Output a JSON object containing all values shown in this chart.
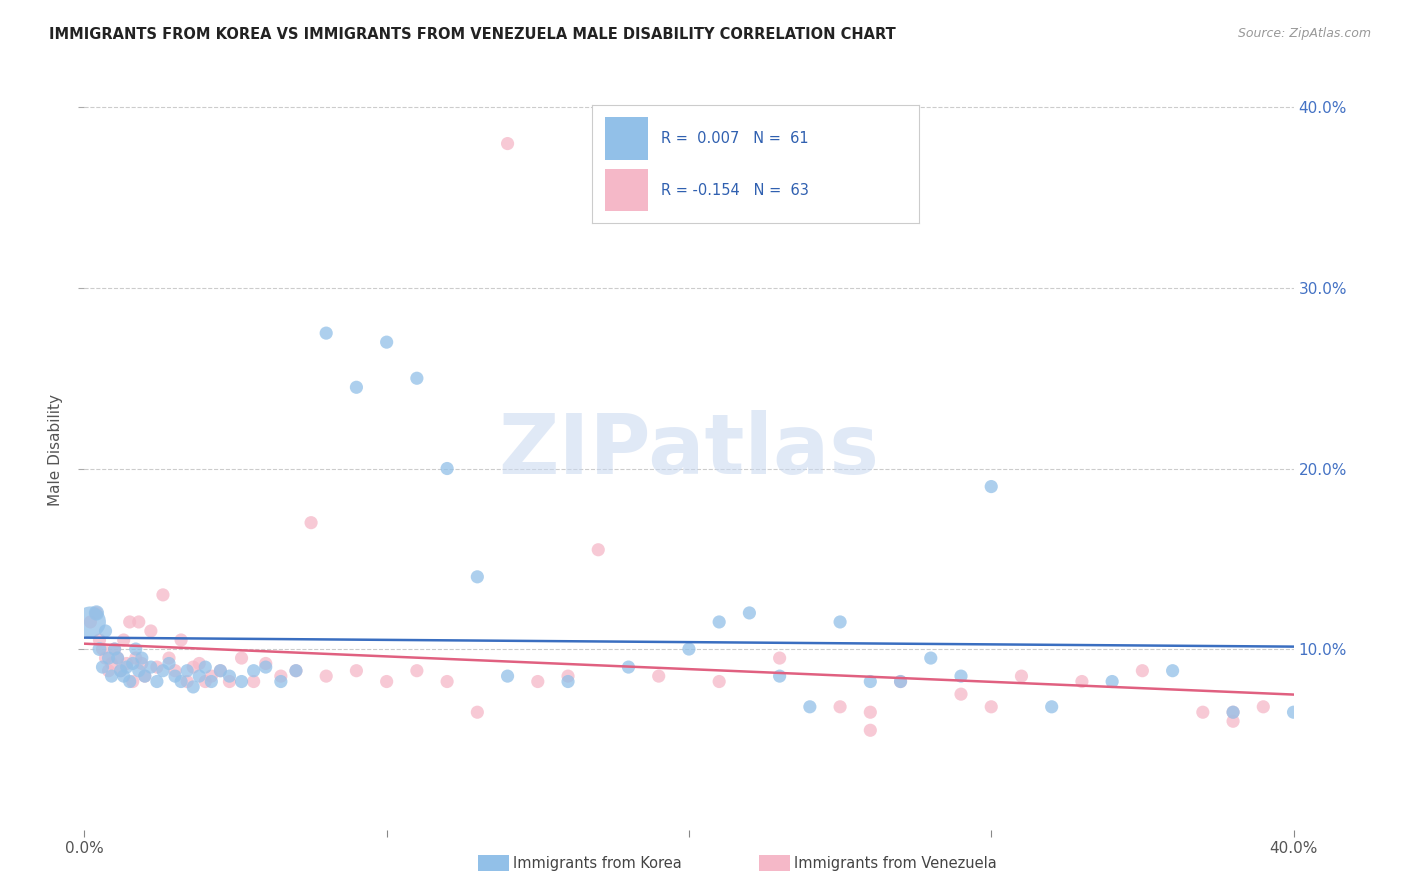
{
  "title": "IMMIGRANTS FROM KOREA VS IMMIGRANTS FROM VENEZUELA MALE DISABILITY CORRELATION CHART",
  "source": "Source: ZipAtlas.com",
  "ylabel": "Male Disability",
  "x_min": 0.0,
  "x_max": 0.4,
  "y_min": 0.0,
  "y_max": 0.42,
  "x_ticks": [
    0.0,
    0.1,
    0.2,
    0.3,
    0.4
  ],
  "x_tick_labels": [
    "0.0%",
    "",
    "",
    "",
    "40.0%"
  ],
  "y_ticks": [
    0.1,
    0.2,
    0.3,
    0.4
  ],
  "y_tick_labels_right": [
    "10.0%",
    "20.0%",
    "30.0%",
    "40.0%"
  ],
  "korea_color": "#92C0E8",
  "venezuela_color": "#F5B8C8",
  "korea_R": 0.007,
  "korea_N": 61,
  "venezuela_R": -0.154,
  "venezuela_N": 63,
  "trend_korea_color": "#3A6EC0",
  "trend_venezuela_color": "#E06080",
  "watermark_text": "ZIPatlas",
  "legend_korea": "Immigrants from Korea",
  "legend_venezuela": "Immigrants from Venezuela",
  "korea_x": [
    0.002,
    0.004,
    0.005,
    0.006,
    0.007,
    0.008,
    0.009,
    0.01,
    0.011,
    0.012,
    0.013,
    0.014,
    0.015,
    0.016,
    0.017,
    0.018,
    0.019,
    0.02,
    0.022,
    0.024,
    0.026,
    0.028,
    0.03,
    0.032,
    0.034,
    0.036,
    0.038,
    0.04,
    0.042,
    0.045,
    0.048,
    0.052,
    0.056,
    0.06,
    0.065,
    0.07,
    0.08,
    0.09,
    0.1,
    0.11,
    0.12,
    0.13,
    0.14,
    0.16,
    0.18,
    0.2,
    0.22,
    0.24,
    0.25,
    0.27,
    0.28,
    0.3,
    0.32,
    0.34,
    0.36,
    0.38,
    0.4,
    0.21,
    0.26,
    0.23,
    0.29
  ],
  "korea_y": [
    0.115,
    0.12,
    0.1,
    0.09,
    0.11,
    0.095,
    0.085,
    0.1,
    0.095,
    0.088,
    0.085,
    0.09,
    0.082,
    0.092,
    0.1,
    0.088,
    0.095,
    0.085,
    0.09,
    0.082,
    0.088,
    0.092,
    0.085,
    0.082,
    0.088,
    0.079,
    0.085,
    0.09,
    0.082,
    0.088,
    0.085,
    0.082,
    0.088,
    0.09,
    0.082,
    0.088,
    0.275,
    0.245,
    0.27,
    0.25,
    0.2,
    0.14,
    0.085,
    0.082,
    0.09,
    0.1,
    0.12,
    0.068,
    0.115,
    0.082,
    0.095,
    0.19,
    0.068,
    0.082,
    0.088,
    0.065,
    0.065,
    0.115,
    0.082,
    0.085,
    0.085
  ],
  "korea_size": [
    500,
    120,
    100,
    90,
    90,
    90,
    90,
    90,
    90,
    90,
    90,
    90,
    90,
    90,
    90,
    90,
    90,
    90,
    90,
    90,
    90,
    90,
    90,
    90,
    90,
    90,
    90,
    90,
    90,
    90,
    90,
    90,
    90,
    90,
    90,
    90,
    90,
    90,
    90,
    90,
    90,
    90,
    90,
    90,
    90,
    90,
    90,
    90,
    90,
    90,
    90,
    90,
    90,
    90,
    90,
    90,
    90,
    90,
    90,
    90,
    90
  ],
  "venezuela_x": [
    0.002,
    0.004,
    0.005,
    0.006,
    0.007,
    0.008,
    0.009,
    0.01,
    0.011,
    0.012,
    0.013,
    0.014,
    0.015,
    0.016,
    0.017,
    0.018,
    0.019,
    0.02,
    0.022,
    0.024,
    0.026,
    0.028,
    0.03,
    0.032,
    0.034,
    0.036,
    0.038,
    0.04,
    0.042,
    0.045,
    0.048,
    0.052,
    0.056,
    0.06,
    0.065,
    0.07,
    0.075,
    0.08,
    0.09,
    0.1,
    0.11,
    0.12,
    0.13,
    0.15,
    0.17,
    0.19,
    0.21,
    0.23,
    0.25,
    0.27,
    0.29,
    0.31,
    0.33,
    0.35,
    0.37,
    0.39,
    0.16,
    0.38,
    0.38,
    0.26,
    0.26,
    0.14,
    0.3
  ],
  "venezuela_y": [
    0.115,
    0.12,
    0.105,
    0.1,
    0.095,
    0.088,
    0.092,
    0.1,
    0.095,
    0.088,
    0.105,
    0.092,
    0.115,
    0.082,
    0.095,
    0.115,
    0.092,
    0.085,
    0.11,
    0.09,
    0.13,
    0.095,
    0.088,
    0.105,
    0.082,
    0.09,
    0.092,
    0.082,
    0.085,
    0.088,
    0.082,
    0.095,
    0.082,
    0.092,
    0.085,
    0.088,
    0.17,
    0.085,
    0.088,
    0.082,
    0.088,
    0.082,
    0.065,
    0.082,
    0.155,
    0.085,
    0.082,
    0.095,
    0.068,
    0.082,
    0.075,
    0.085,
    0.082,
    0.088,
    0.065,
    0.068,
    0.085,
    0.065,
    0.06,
    0.065,
    0.055,
    0.38,
    0.068
  ],
  "venezuela_size": [
    90,
    90,
    90,
    90,
    90,
    90,
    90,
    90,
    90,
    90,
    90,
    90,
    90,
    90,
    90,
    90,
    90,
    90,
    90,
    90,
    90,
    90,
    90,
    90,
    90,
    90,
    90,
    90,
    90,
    90,
    90,
    90,
    90,
    90,
    90,
    90,
    90,
    90,
    90,
    90,
    90,
    90,
    90,
    90,
    90,
    90,
    90,
    90,
    90,
    90,
    90,
    90,
    90,
    90,
    90,
    90,
    90,
    90,
    90,
    90,
    90,
    90,
    90
  ]
}
